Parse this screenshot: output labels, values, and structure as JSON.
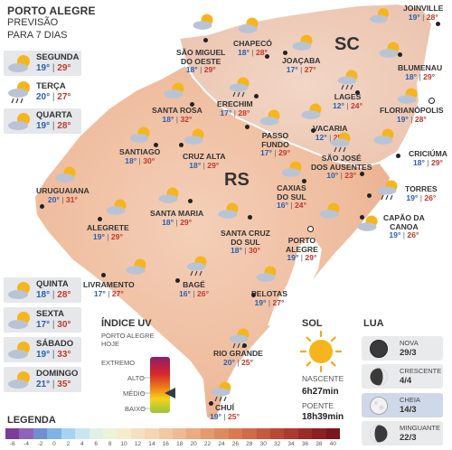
{
  "header": {
    "city": "PORTO ALEGRE",
    "line2": "PREVISÃO",
    "line3": "PARA 7 DIAS"
  },
  "forecast": [
    {
      "day": "SEGUNDA",
      "min": "19°",
      "max": "29°",
      "icon": "partly-cloudy-icon"
    },
    {
      "day": "TERÇA",
      "min": "20°",
      "max": "27°",
      "icon": "rain-icon"
    },
    {
      "day": "QUARTA",
      "min": "19°",
      "max": "28°",
      "icon": "partly-cloudy-icon"
    },
    {
      "day": "QUINTA",
      "min": "18°",
      "max": "28°",
      "icon": "partly-cloudy-icon"
    },
    {
      "day": "SEXTA",
      "min": "17°",
      "max": "30°",
      "icon": "partly-cloudy-icon"
    },
    {
      "day": "SÁBADO",
      "min": "19°",
      "max": "33°",
      "icon": "partly-cloudy-icon"
    },
    {
      "day": "DOMINGO",
      "min": "21°",
      "max": "35°",
      "icon": "partly-cloudy-icon"
    }
  ],
  "states": {
    "rs": "RS",
    "sc": "SC"
  },
  "cities": [
    {
      "name": "JOINVILLE",
      "min": "19°",
      "max": "28°"
    },
    {
      "name": "SÃO MIGUEL DO OESTE",
      "name1": "SÃO MIGUEL",
      "name2": "DO OESTE",
      "min": "18°",
      "max": "29°"
    },
    {
      "name": "CHAPECÓ",
      "min": "18°",
      "max": "28°"
    },
    {
      "name": "JOAÇABA",
      "min": "17°",
      "max": "27°"
    },
    {
      "name": "BLUMENAU",
      "min": "18°",
      "max": "29°"
    },
    {
      "name": "LAGES",
      "min": "12°",
      "max": "24°"
    },
    {
      "name": "FLORIANÓPOLIS",
      "min": "19°",
      "max": "28°"
    },
    {
      "name": "SANTA ROSA",
      "min": "18°",
      "max": "32°"
    },
    {
      "name": "ERECHIM",
      "min": "17°",
      "max": "28°"
    },
    {
      "name": "VACARIA",
      "min": "12°",
      "max": "25°"
    },
    {
      "name": "PASSO FUNDO",
      "name1": "PASSO",
      "name2": "FUNDO",
      "min": "17°",
      "max": "29°"
    },
    {
      "name": "SANTIAGO",
      "min": "18°",
      "max": "30°"
    },
    {
      "name": "CRUZ ALTA",
      "min": "18°",
      "max": "29°"
    },
    {
      "name": "SÃO JOSÉ DOS AUSENTES",
      "name1": "SÃO JOSÉ",
      "name2": "DOS AUSENTES",
      "min": "10°",
      "max": "23°"
    },
    {
      "name": "CRICIÚMA",
      "min": "18°",
      "max": "29°"
    },
    {
      "name": "URUGUAIANA",
      "min": "20°",
      "max": "31°"
    },
    {
      "name": "CAXIAS DO SUL",
      "name1": "CAXIAS",
      "name2": "DO SUL",
      "min": "16°",
      "max": "24°"
    },
    {
      "name": "TORRES",
      "min": "19°",
      "max": "26°"
    },
    {
      "name": "ALEGRETE",
      "min": "19°",
      "max": "29°"
    },
    {
      "name": "SANTA MARIA",
      "min": "18°",
      "max": "29°"
    },
    {
      "name": "SANTA CRUZ DO SUL",
      "name1": "SANTA CRUZ",
      "name2": "DO SUL",
      "min": "18°",
      "max": "30°"
    },
    {
      "name": "PORTO ALEGRE",
      "name1": "PORTO",
      "name2": "ALEGRE",
      "min": "19°",
      "max": "29°"
    },
    {
      "name": "CAPÃO DA CANOA",
      "name1": "CAPÃO DA",
      "name2": "CANOA",
      "min": "19°",
      "max": "26°"
    },
    {
      "name": "LIVRAMENTO",
      "min": "17°",
      "max": "27°"
    },
    {
      "name": "BAGÉ",
      "min": "16°",
      "max": "26°"
    },
    {
      "name": "PELOTAS",
      "min": "19°",
      "max": "27°"
    },
    {
      "name": "RIO GRANDE",
      "min": "20°",
      "max": "25°"
    },
    {
      "name": "CHUÍ",
      "min": "19°",
      "max": "25°"
    }
  ],
  "uv": {
    "title": "ÍNDICE UV",
    "subtitle1": "PORTO ALEGRE",
    "subtitle2": "HOJE",
    "levels": [
      "EXTREMO",
      "ALTO",
      "MÉDIO",
      "BAIXO"
    ],
    "current_level": "MÉDIO",
    "gradient_colors": [
      "#8e1e6b",
      "#d6262b",
      "#ef7d1a",
      "#f5d21a",
      "#9bc53d"
    ]
  },
  "sun": {
    "title": "SOL",
    "sunrise_label": "NASCENTE",
    "sunrise": "6h27min",
    "sunset_label": "POENTE",
    "sunset": "18h39min"
  },
  "moon": {
    "title": "LUA",
    "phases": [
      {
        "name": "NOVA",
        "date": "29/3"
      },
      {
        "name": "CRESCENTE",
        "date": "4/4"
      },
      {
        "name": "CHEIA",
        "date": "14/3",
        "current": true
      },
      {
        "name": "MINGUANTE",
        "date": "22/3"
      }
    ]
  },
  "legend": {
    "title": "LEGENDA",
    "values": [
      "-6",
      "-4",
      "-2",
      "0",
      "2",
      "4",
      "6",
      "8",
      "10",
      "12",
      "14",
      "16",
      "18",
      "20",
      "22",
      "24",
      "26",
      "28",
      "30",
      "32",
      "34",
      "36",
      "38",
      "40"
    ],
    "colors": [
      "#7d3c98",
      "#8e63b8",
      "#6f8fd0",
      "#7fb3e3",
      "#a6d3ef",
      "#c7e6f2",
      "#e0f0e8",
      "#eef3d8",
      "#f5eccc",
      "#f6e0c2",
      "#f4d5b4",
      "#f1c8a2",
      "#eebb92",
      "#eaab80",
      "#e59a6e",
      "#df8a5e",
      "#d97a52",
      "#d06a47",
      "#c55a3d",
      "#b94a35",
      "#ac3a2e",
      "#9d2b28",
      "#8d1f22",
      "#7c151d"
    ]
  },
  "colors": {
    "temp_min": "#2b5fae",
    "temp_max": "#c0392b"
  }
}
